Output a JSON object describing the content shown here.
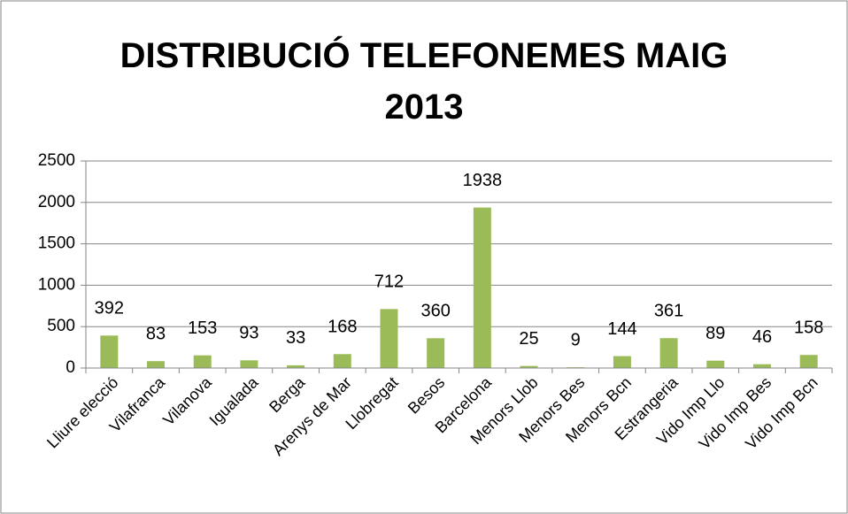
{
  "chart_data": {
    "type": "bar",
    "title": "DISTRIBUCIÓ TELEFONEMES MAIG 2013",
    "categories": [
      "Lliure elecció",
      "Vilafranca",
      "Vilanova",
      "Igualada",
      "Berga",
      "Arenys de Mar",
      "Llobregat",
      "Besos",
      "Barcelona",
      "Menors Llob",
      "Menors Bes",
      "Menors Bcn",
      "Estrangeria",
      "Vido Imp Llo",
      "Vido Imp Bes",
      "Vido Imp Bcn"
    ],
    "values": [
      392,
      83,
      153,
      93,
      33,
      168,
      712,
      360,
      1938,
      25,
      9,
      144,
      361,
      89,
      46,
      158
    ],
    "color": "#9bbb59",
    "ylim": [
      0,
      2500
    ],
    "yticks": [
      0,
      500,
      1000,
      1500,
      2000,
      2500
    ],
    "grid": true
  }
}
